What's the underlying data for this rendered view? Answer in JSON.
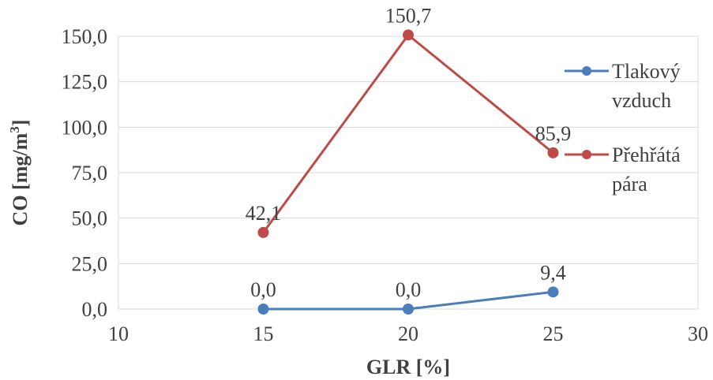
{
  "chart_data": {
    "type": "line",
    "xlabel": "GLR [%]",
    "ylabel_prefix": "CO [mg/m",
    "ylabel_sup": "3",
    "ylabel_suffix": "]",
    "xlim": [
      10,
      30
    ],
    "ylim": [
      0,
      150
    ],
    "x_ticks": [
      10,
      15,
      20,
      25,
      30
    ],
    "x_tick_labels": [
      "10",
      "15",
      "20",
      "25",
      "30"
    ],
    "y_ticks": [
      0,
      25,
      50,
      75,
      100,
      125,
      150
    ],
    "y_tick_labels": [
      "0,0",
      "25,0",
      "50,0",
      "75,0",
      "100,0",
      "125,0",
      "150,0"
    ],
    "grid": "horizontal",
    "legend_position": "right",
    "series": [
      {
        "name_lines": [
          "Tlakový",
          "vzduch"
        ],
        "color": "#4a7ebb",
        "x": [
          15,
          20,
          25
        ],
        "values": [
          0.0,
          0.0,
          9.4
        ],
        "data_labels": [
          "0,0",
          "0,0",
          "9,4"
        ]
      },
      {
        "name_lines": [
          "Přehřátá",
          "pára"
        ],
        "color": "#be4b48",
        "x": [
          15,
          20,
          25
        ],
        "values": [
          42.1,
          150.7,
          85.9
        ],
        "data_labels": [
          "42,1",
          "150,7",
          "85,9"
        ]
      }
    ]
  }
}
